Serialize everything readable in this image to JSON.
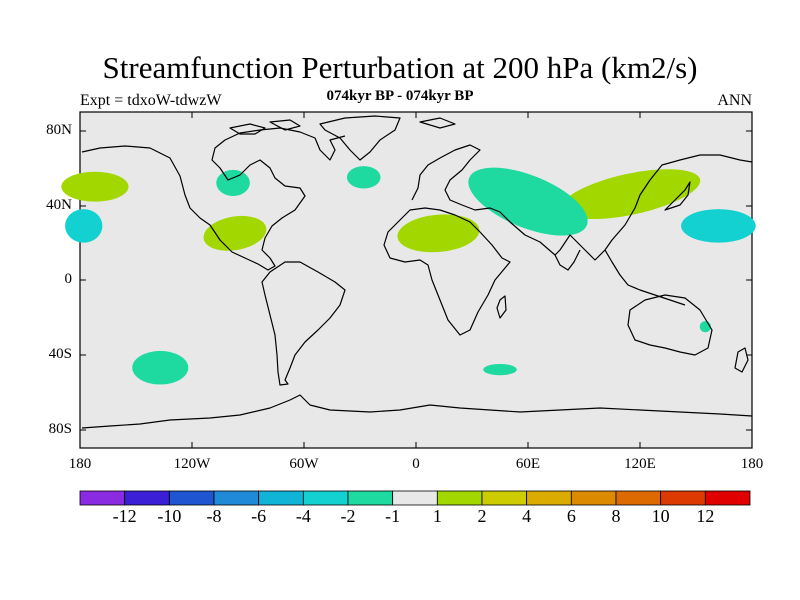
{
  "header": {
    "title": "Streamfunction Perturbation at 200 hPa (km2/s)",
    "left": "Expt = tdxoW-tdwzW",
    "center": "074kyr BP - 074kyr BP",
    "right": "ANN"
  },
  "axes": {
    "lat_ticks": [
      "80N",
      "40N",
      "0",
      "40S",
      "80S"
    ],
    "lon_ticks": [
      "180",
      "120W",
      "60W",
      "0",
      "60E",
      "120E",
      "180"
    ]
  },
  "colorbar": {
    "colors": [
      "#8a2be2",
      "#3a1fd6",
      "#1f55d1",
      "#1f8ad8",
      "#10b4d6",
      "#14d1d1",
      "#1ed9a0",
      "#e8e8e8",
      "#a2d800",
      "#cccc00",
      "#dcab00",
      "#dc8a00",
      "#dc6a00",
      "#dc3a00",
      "#e00000"
    ],
    "labels": [
      "-12",
      "-10",
      "-8",
      "-6",
      "-4",
      "-2",
      "-1",
      "1",
      "2",
      "4",
      "6",
      "8",
      "10",
      "12"
    ]
  },
  "map": {
    "background": "#e8e8e8",
    "coastline_color": "#000000"
  },
  "chart_data": {
    "type": "heatmap",
    "title": "Streamfunction Perturbation at 200 hPa (km2/s)",
    "subtitle": "074kyr BP - 074kyr BP",
    "x_range": [
      -180,
      180
    ],
    "y_range": [
      -90,
      90
    ],
    "levels": [
      -12,
      -10,
      -8,
      -6,
      -4,
      -2,
      -1,
      1,
      2,
      4,
      6,
      8,
      10,
      12
    ],
    "regions": [
      {
        "lon": 162,
        "lat": 29,
        "value": -2.5
      },
      {
        "lon": -178,
        "lat": 29,
        "value": -2.5
      },
      {
        "lon": 115,
        "lat": 46,
        "value": 1.5
      },
      {
        "lon": -172,
        "lat": 50,
        "value": 1.5
      },
      {
        "lon": 60,
        "lat": 42,
        "value": -1.5
      },
      {
        "lon": 12,
        "lat": 25,
        "value": 1.5
      },
      {
        "lon": -28,
        "lat": 55,
        "value": -1.5
      },
      {
        "lon": -98,
        "lat": 52,
        "value": -1.5
      },
      {
        "lon": -97,
        "lat": 25,
        "value": 1.5
      },
      {
        "lon": -137,
        "lat": -47,
        "value": -1.5
      },
      {
        "lon": 45,
        "lat": -48,
        "value": -1.5
      },
      {
        "lon": 155,
        "lat": -25,
        "value": -1.5
      }
    ]
  }
}
